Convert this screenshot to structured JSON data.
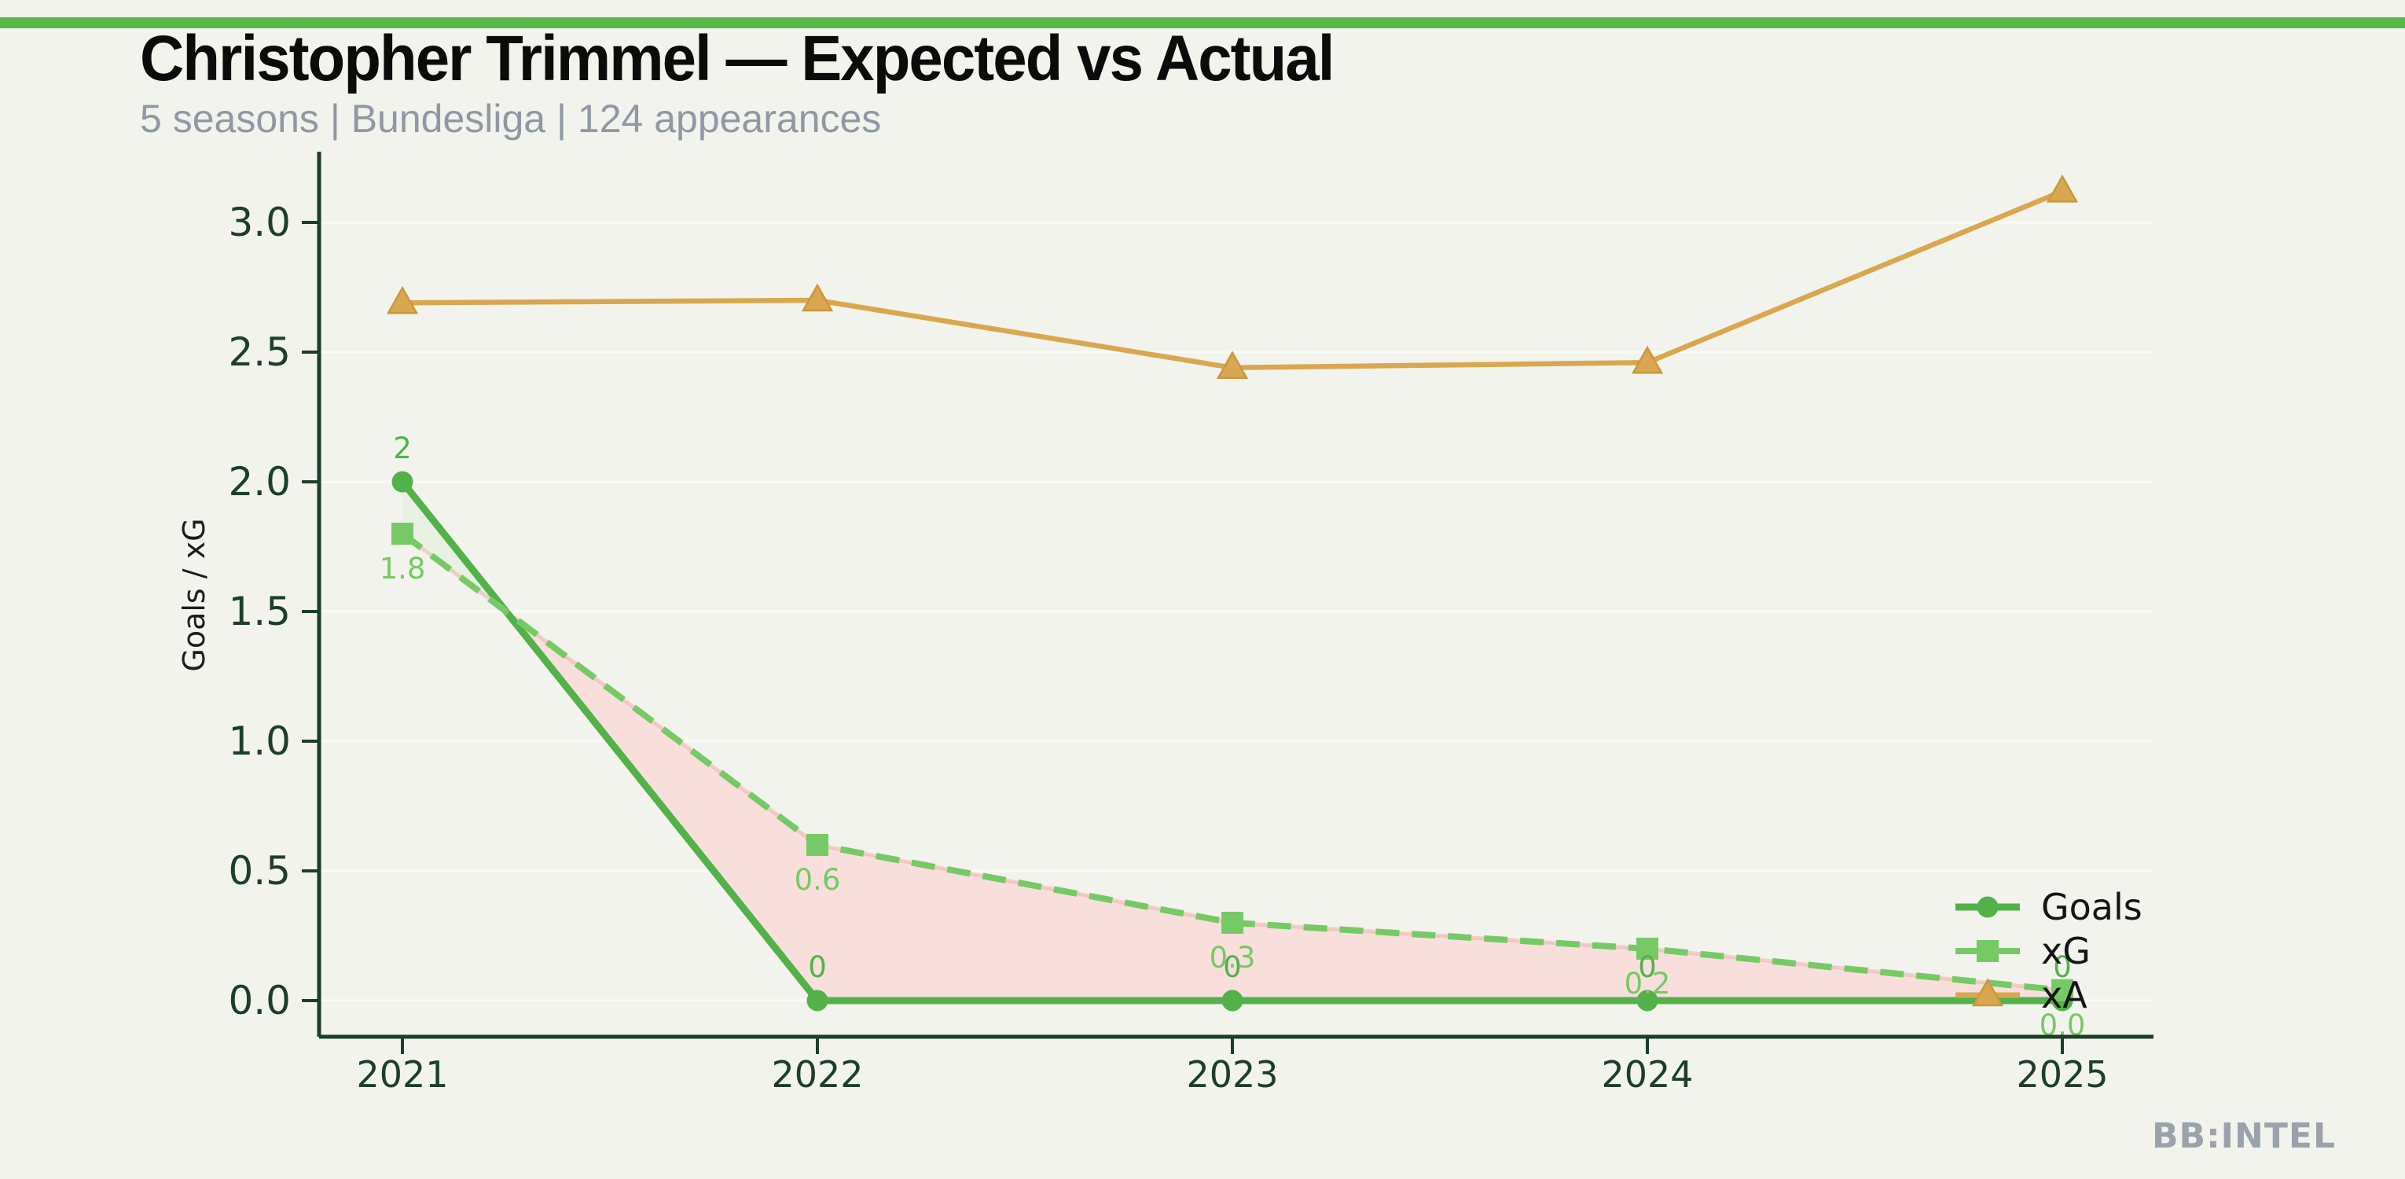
{
  "page": {
    "background": "#f2f3ec",
    "topbar_color": "#57b84b"
  },
  "header": {
    "title": "Christopher Trimmel — Expected vs Actual",
    "subtitle": "5 seasons | Bundesliga | 124 appearances",
    "title_color": "#0b0b0b",
    "subtitle_color": "#8f98a4"
  },
  "watermark": {
    "text": "BB:INTEL",
    "color": "#9aa2ac"
  },
  "chart_data": {
    "type": "line",
    "x_categories": [
      "2021",
      "2022",
      "2023",
      "2024",
      "2025"
    ],
    "ylabel": "Goals / xG",
    "yticks": [
      "0.0",
      "0.5",
      "1.0",
      "1.5",
      "2.0",
      "2.5",
      "3.0"
    ],
    "ylim": [
      -0.14,
      3.27
    ],
    "grid": true,
    "legend_position": "lower-right",
    "series": [
      {
        "name": "Goals",
        "marker": "circle",
        "line_style": "solid",
        "color": "#52b249",
        "values": [
          2,
          0,
          0,
          0,
          0
        ],
        "point_labels": [
          "2",
          "0",
          "0",
          "0",
          "0"
        ],
        "label_side": "above"
      },
      {
        "name": "xG",
        "marker": "square",
        "line_style": "dashed",
        "color": "#76ca66",
        "values": [
          1.8,
          0.6,
          0.3,
          0.2,
          0.04
        ],
        "point_labels": [
          "1.8",
          "0.6",
          "0.3",
          "0.2",
          "0.0"
        ],
        "label_side": "below"
      },
      {
        "name": "xA",
        "marker": "triangle",
        "line_style": "solid",
        "color": "#d9a750",
        "values": [
          2.69,
          2.7,
          2.44,
          2.46,
          3.12
        ],
        "point_labels": null,
        "label_side": "none"
      }
    ],
    "fills": {
      "goals_above_xg_color": "#e9f1e2",
      "goals_below_xg_color": "#f8dfdc"
    },
    "axis_color": "#1d3e28",
    "tick_label_color": "#1d3e28",
    "grid_color": "#fafbf3",
    "axis_label_color": "#1c1c1c",
    "legend_text_color": "#141414"
  }
}
